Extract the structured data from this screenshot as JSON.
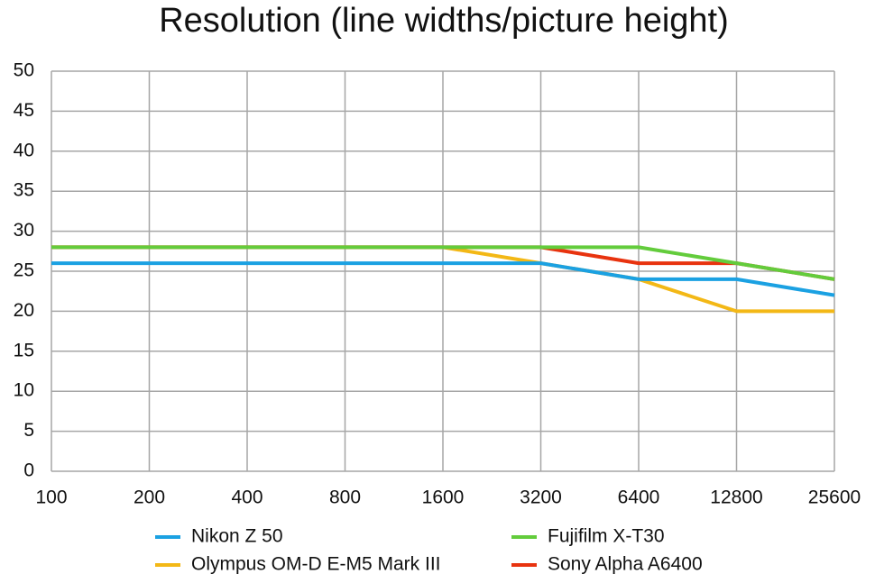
{
  "chart_data": {
    "type": "line",
    "title": "Resolution (line widths/picture height)",
    "x": [
      100,
      200,
      400,
      800,
      1600,
      3200,
      6400,
      12800,
      25600
    ],
    "xscale": "log",
    "xlim": [
      100,
      25600
    ],
    "xticks": [
      100,
      200,
      400,
      800,
      1600,
      3200,
      6400,
      12800,
      25600
    ],
    "ylim": [
      0,
      50
    ],
    "yticks": [
      0,
      5,
      10,
      15,
      20,
      25,
      30,
      35,
      40,
      45,
      50
    ],
    "grid": true,
    "legend": "bottom",
    "series": [
      {
        "name": "Nikon Z 50",
        "color": "#1ba1e2",
        "values": [
          26,
          26,
          26,
          26,
          26,
          26,
          24,
          24,
          22
        ]
      },
      {
        "name": "Olympus OM-D E-M5 Mark III",
        "color": "#f3b816",
        "values": [
          28,
          28,
          28,
          28,
          28,
          26,
          24,
          20,
          20
        ]
      },
      {
        "name": "Fujifilm X-T30",
        "color": "#63cc3c",
        "values": [
          28,
          28,
          28,
          28,
          28,
          28,
          28,
          26,
          24
        ]
      },
      {
        "name": "Sony Alpha A6400",
        "color": "#e8330f",
        "values": [
          28,
          28,
          28,
          28,
          28,
          28,
          26,
          26,
          24
        ]
      }
    ]
  }
}
